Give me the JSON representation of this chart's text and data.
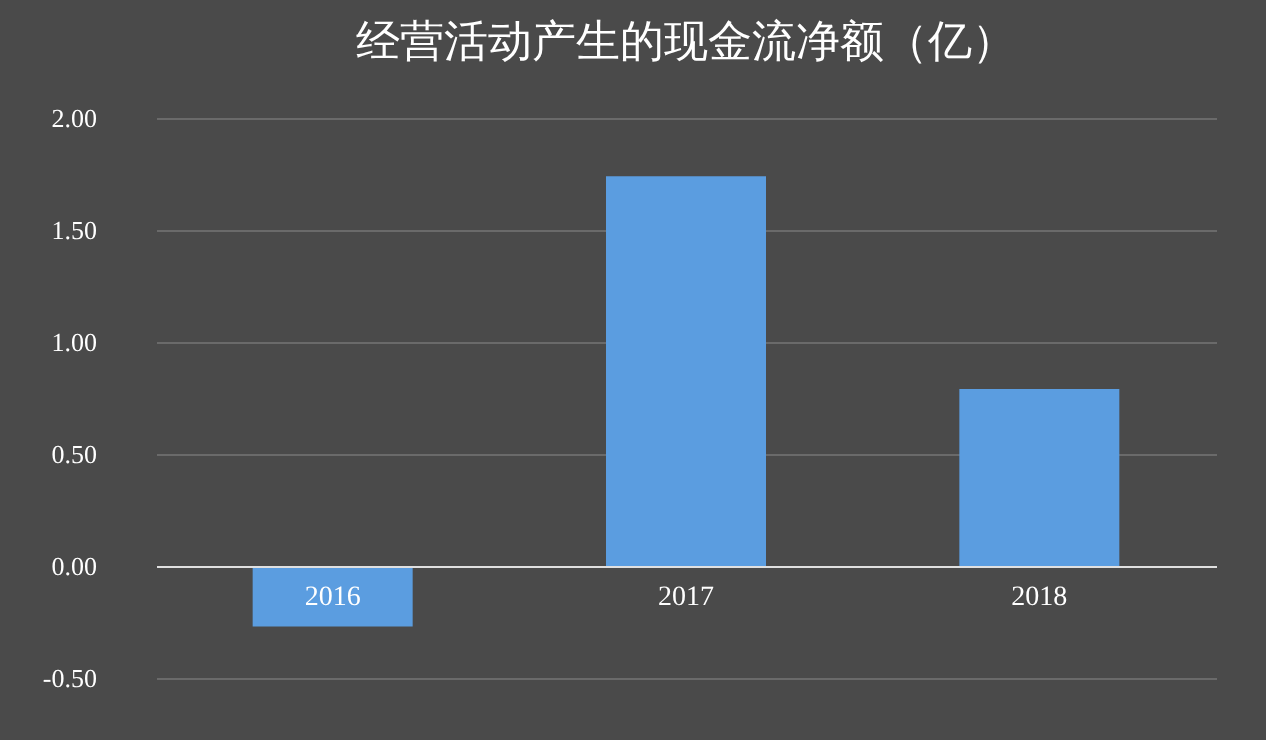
{
  "chart_data": {
    "type": "bar",
    "title": "经营活动产生的现金流净额（亿）",
    "categories": [
      "2016",
      "2017",
      "2018"
    ],
    "values": [
      -0.27,
      1.74,
      0.79
    ],
    "color": "#5b9de0",
    "ylim": [
      -0.5,
      2
    ],
    "yticks": [
      {
        "value": -0.5,
        "label": "-0.50"
      },
      {
        "value": 0,
        "label": "0.00"
      },
      {
        "value": 0.5,
        "label": "0.50"
      },
      {
        "value": 1,
        "label": "1.00"
      },
      {
        "value": 1.5,
        "label": "1.50"
      },
      {
        "value": 2,
        "label": "2.00"
      }
    ],
    "grid": "y"
  }
}
